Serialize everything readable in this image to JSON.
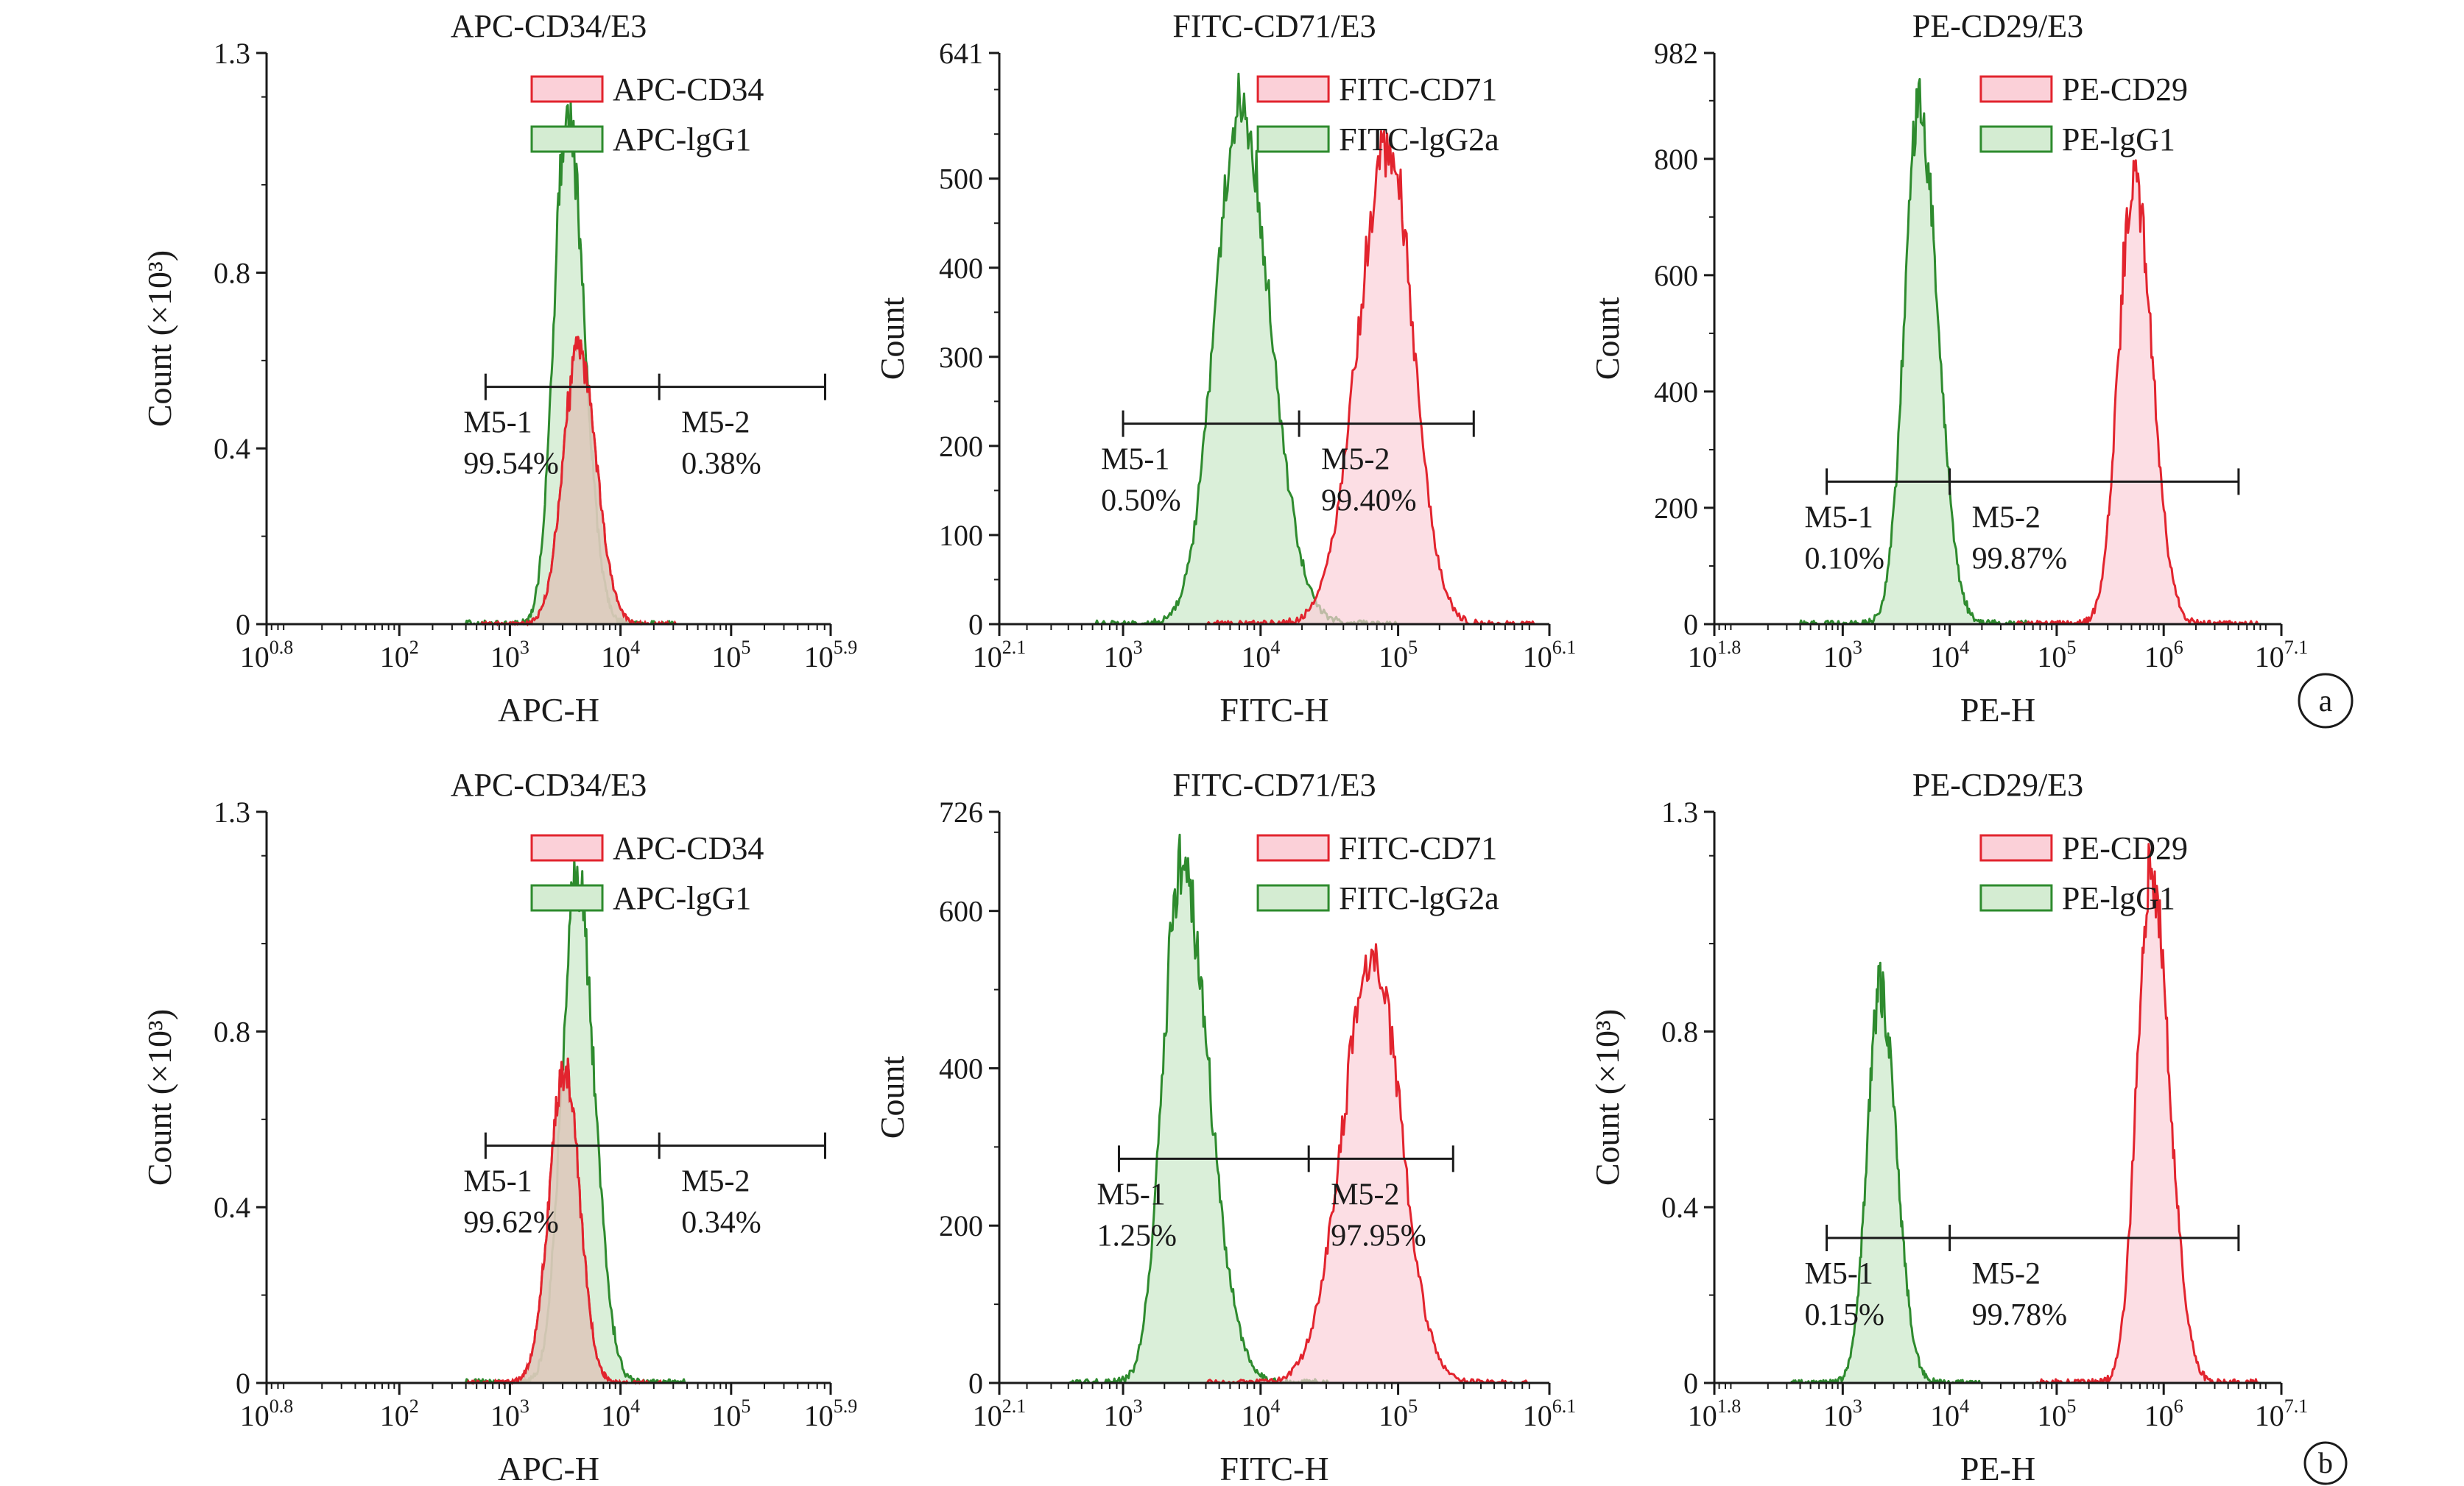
{
  "figure": {
    "panel_labels": [
      "a",
      "b"
    ]
  },
  "colors": {
    "sample_stroke": "#e2242e",
    "sample_fill": "#fbd0d8",
    "control_stroke": "#2e8b2e",
    "control_fill": "#d4ecd2",
    "overlap_fill": "#d6c8b6",
    "axis": "#1a1a1a"
  },
  "chart_data": [
    {
      "type": "histogram",
      "panel": "a",
      "title": "APC-CD34/E3",
      "xlabel": "APC-H",
      "ylabel": "Count (×10³)",
      "xscale": "log10",
      "xlim_exp": [
        0.8,
        5.9
      ],
      "ylim": [
        0,
        1.3
      ],
      "xticks": [
        {
          "exp": 0.8,
          "base": "10",
          "sup": "0.8"
        },
        {
          "exp": 2,
          "base": "10",
          "sup": "2"
        },
        {
          "exp": 3,
          "base": "10",
          "sup": "3"
        },
        {
          "exp": 4,
          "base": "10",
          "sup": "4"
        },
        {
          "exp": 5,
          "base": "10",
          "sup": "5"
        },
        {
          "exp": 5.9,
          "base": "10",
          "sup": "5.9"
        }
      ],
      "yticks": [
        {
          "value": 0,
          "label": "0"
        },
        {
          "value": 0.4,
          "label": "0.4"
        },
        {
          "value": 0.8,
          "label": "0.8"
        },
        {
          "value": 1.3,
          "label": "1.3"
        }
      ],
      "series": [
        {
          "name": "APC-CD34",
          "role": "sample",
          "peak_exp": 3.62,
          "peak": 0.62,
          "left_sd": 0.14,
          "right_sd": 0.16,
          "lo_exp": 2.7,
          "hi_exp": 4.55
        },
        {
          "name": "APC-lgG1",
          "role": "control",
          "peak_exp": 3.52,
          "peak": 1.17,
          "left_sd": 0.12,
          "right_sd": 0.15,
          "lo_exp": 2.6,
          "hi_exp": 4.5
        }
      ],
      "overlap": true,
      "gates": {
        "start_exp": 2.78,
        "split_exp": 4.35,
        "end_exp": 5.85,
        "y": 0.54,
        "m1": {
          "name": "M5-1",
          "pct": "99.54%"
        },
        "m2": {
          "name": "M5-2",
          "pct": "0.38%"
        }
      }
    },
    {
      "type": "histogram",
      "panel": "a",
      "title": "FITC-CD71/E3",
      "xlabel": "FITC-H",
      "ylabel": "Count",
      "xscale": "log10",
      "xlim_exp": [
        2.1,
        6.1
      ],
      "ylim": [
        0,
        641
      ],
      "xticks": [
        {
          "exp": 2.1,
          "base": "10",
          "sup": "2.1"
        },
        {
          "exp": 3,
          "base": "10",
          "sup": "3"
        },
        {
          "exp": 4,
          "base": "10",
          "sup": "4"
        },
        {
          "exp": 5,
          "base": "10",
          "sup": "5"
        },
        {
          "exp": 6.1,
          "base": "10",
          "sup": "6.1"
        }
      ],
      "yticks": [
        {
          "value": 0,
          "label": "0"
        },
        {
          "value": 100,
          "label": "100"
        },
        {
          "value": 200,
          "label": "200"
        },
        {
          "value": 300,
          "label": "300"
        },
        {
          "value": 400,
          "label": "400"
        },
        {
          "value": 500,
          "label": "500"
        },
        {
          "value": 641,
          "label": "641"
        }
      ],
      "series": [
        {
          "name": "FITC-CD71",
          "role": "sample",
          "peak_exp": 4.93,
          "peak": 540,
          "left_sd": 0.22,
          "right_sd": 0.18,
          "lo_exp": 3.6,
          "hi_exp": 6.0
        },
        {
          "name": "FITC-lgG2a",
          "role": "control",
          "peak_exp": 3.85,
          "peak": 580,
          "left_sd": 0.18,
          "right_sd": 0.22,
          "lo_exp": 2.8,
          "hi_exp": 5.0
        }
      ],
      "overlap": false,
      "gates": {
        "start_exp": 3.0,
        "split_exp": 4.28,
        "end_exp": 5.55,
        "y": 225,
        "m1": {
          "name": "M5-1",
          "pct": "0.50%"
        },
        "m2": {
          "name": "M5-2",
          "pct": "99.40%"
        }
      }
    },
    {
      "type": "histogram",
      "panel": "a",
      "title": "PE-CD29/E3",
      "xlabel": "PE-H",
      "ylabel": "Count",
      "xscale": "log10",
      "xlim_exp": [
        1.8,
        7.1
      ],
      "ylim": [
        0,
        982
      ],
      "xticks": [
        {
          "exp": 1.8,
          "base": "10",
          "sup": "1.8"
        },
        {
          "exp": 3,
          "base": "10",
          "sup": "3"
        },
        {
          "exp": 4,
          "base": "10",
          "sup": "4"
        },
        {
          "exp": 5,
          "base": "10",
          "sup": "5"
        },
        {
          "exp": 6,
          "base": "10",
          "sup": "6"
        },
        {
          "exp": 7.1,
          "base": "10",
          "sup": "7.1"
        }
      ],
      "yticks": [
        {
          "value": 0,
          "label": "0"
        },
        {
          "value": 200,
          "label": "200"
        },
        {
          "value": 400,
          "label": "400"
        },
        {
          "value": 600,
          "label": "600"
        },
        {
          "value": 800,
          "label": "800"
        },
        {
          "value": 982,
          "label": "982"
        }
      ],
      "series": [
        {
          "name": "PE-CD29",
          "role": "sample",
          "peak_exp": 5.72,
          "peak": 770,
          "left_sd": 0.14,
          "right_sd": 0.17,
          "lo_exp": 4.6,
          "hi_exp": 6.9
        },
        {
          "name": "PE-lgG1",
          "role": "control",
          "peak_exp": 3.72,
          "peak": 890,
          "left_sd": 0.14,
          "right_sd": 0.17,
          "lo_exp": 2.6,
          "hi_exp": 4.8
        }
      ],
      "overlap": false,
      "gates": {
        "start_exp": 2.85,
        "split_exp": 4.0,
        "end_exp": 6.7,
        "y": 245,
        "m1": {
          "name": "M5-1",
          "pct": "0.10%"
        },
        "m2": {
          "name": "M5-2",
          "pct": "99.87%"
        }
      }
    },
    {
      "type": "histogram",
      "panel": "b",
      "title": "APC-CD34/E3",
      "xlabel": "APC-H",
      "ylabel": "Count (×10³)",
      "xscale": "log10",
      "xlim_exp": [
        0.8,
        5.9
      ],
      "ylim": [
        0,
        1.3
      ],
      "xticks": [
        {
          "exp": 0.8,
          "base": "10",
          "sup": "0.8"
        },
        {
          "exp": 2,
          "base": "10",
          "sup": "2"
        },
        {
          "exp": 3,
          "base": "10",
          "sup": "3"
        },
        {
          "exp": 4,
          "base": "10",
          "sup": "4"
        },
        {
          "exp": 5,
          "base": "10",
          "sup": "5"
        },
        {
          "exp": 5.9,
          "base": "10",
          "sup": "5.9"
        }
      ],
      "yticks": [
        {
          "value": 0,
          "label": "0"
        },
        {
          "value": 0.4,
          "label": "0.4"
        },
        {
          "value": 0.8,
          "label": "0.8"
        },
        {
          "value": 1.3,
          "label": "1.3"
        }
      ],
      "series": [
        {
          "name": "APC-CD34",
          "role": "sample",
          "peak_exp": 3.5,
          "peak": 0.72,
          "left_sd": 0.14,
          "right_sd": 0.13,
          "lo_exp": 2.6,
          "hi_exp": 4.4
        },
        {
          "name": "APC-lgG1",
          "role": "control",
          "peak_exp": 3.6,
          "peak": 1.16,
          "left_sd": 0.13,
          "right_sd": 0.16,
          "lo_exp": 2.6,
          "hi_exp": 4.6
        }
      ],
      "overlap": true,
      "gates": {
        "start_exp": 2.78,
        "split_exp": 4.35,
        "end_exp": 5.85,
        "y": 0.54,
        "m1": {
          "name": "M5-1",
          "pct": "99.62%"
        },
        "m2": {
          "name": "M5-2",
          "pct": "0.34%"
        }
      }
    },
    {
      "type": "histogram",
      "panel": "b",
      "title": "FITC-CD71/E3",
      "xlabel": "FITC-H",
      "ylabel": "Count",
      "xscale": "log10",
      "xlim_exp": [
        2.1,
        6.1
      ],
      "ylim": [
        0,
        726
      ],
      "xticks": [
        {
          "exp": 2.1,
          "base": "10",
          "sup": "2.1"
        },
        {
          "exp": 3,
          "base": "10",
          "sup": "3"
        },
        {
          "exp": 4,
          "base": "10",
          "sup": "4"
        },
        {
          "exp": 5,
          "base": "10",
          "sup": "5"
        },
        {
          "exp": 6.1,
          "base": "10",
          "sup": "6.1"
        }
      ],
      "yticks": [
        {
          "value": 0,
          "label": "0"
        },
        {
          "value": 200,
          "label": "200"
        },
        {
          "value": 400,
          "label": "400"
        },
        {
          "value": 600,
          "label": "600"
        },
        {
          "value": 726,
          "label": "726"
        }
      ],
      "series": [
        {
          "name": "FITC-CD71",
          "role": "sample",
          "peak_exp": 4.82,
          "peak": 545,
          "left_sd": 0.22,
          "right_sd": 0.2,
          "lo_exp": 3.6,
          "hi_exp": 5.95
        },
        {
          "name": "FITC-lgG2a",
          "role": "control",
          "peak_exp": 3.42,
          "peak": 660,
          "left_sd": 0.13,
          "right_sd": 0.2,
          "lo_exp": 2.6,
          "hi_exp": 4.5
        }
      ],
      "overlap": false,
      "gates": {
        "start_exp": 2.97,
        "split_exp": 4.35,
        "end_exp": 5.4,
        "y": 285,
        "m1": {
          "name": "M5-1",
          "pct": "1.25%"
        },
        "m2": {
          "name": "M5-2",
          "pct": "97.95%"
        }
      }
    },
    {
      "type": "histogram",
      "panel": "b",
      "title": "PE-CD29/E3",
      "xlabel": "PE-H",
      "ylabel": "Count (×10³)",
      "xscale": "log10",
      "xlim_exp": [
        1.8,
        7.1
      ],
      "ylim": [
        0,
        1.3
      ],
      "xticks": [
        {
          "exp": 1.8,
          "base": "10",
          "sup": "1.8"
        },
        {
          "exp": 3,
          "base": "10",
          "sup": "3"
        },
        {
          "exp": 4,
          "base": "10",
          "sup": "4"
        },
        {
          "exp": 5,
          "base": "10",
          "sup": "5"
        },
        {
          "exp": 6,
          "base": "10",
          "sup": "6"
        },
        {
          "exp": 7.1,
          "base": "10",
          "sup": "7.1"
        }
      ],
      "yticks": [
        {
          "value": 0,
          "label": "0"
        },
        {
          "value": 0.4,
          "label": "0.4"
        },
        {
          "value": 0.8,
          "label": "0.8"
        },
        {
          "value": 1.3,
          "label": "1.3"
        }
      ],
      "series": [
        {
          "name": "PE-CD29",
          "role": "sample",
          "peak_exp": 5.88,
          "peak": 1.17,
          "left_sd": 0.13,
          "right_sd": 0.17,
          "lo_exp": 4.8,
          "hi_exp": 6.9
        },
        {
          "name": "PE-lgG1",
          "role": "control",
          "peak_exp": 3.35,
          "peak": 0.9,
          "left_sd": 0.12,
          "right_sd": 0.15,
          "lo_exp": 2.5,
          "hi_exp": 4.3
        }
      ],
      "overlap": false,
      "gates": {
        "start_exp": 2.85,
        "split_exp": 4.0,
        "end_exp": 6.7,
        "y": 0.33,
        "m1": {
          "name": "M5-1",
          "pct": "0.15%"
        },
        "m2": {
          "name": "M5-2",
          "pct": "99.78%"
        }
      }
    }
  ]
}
